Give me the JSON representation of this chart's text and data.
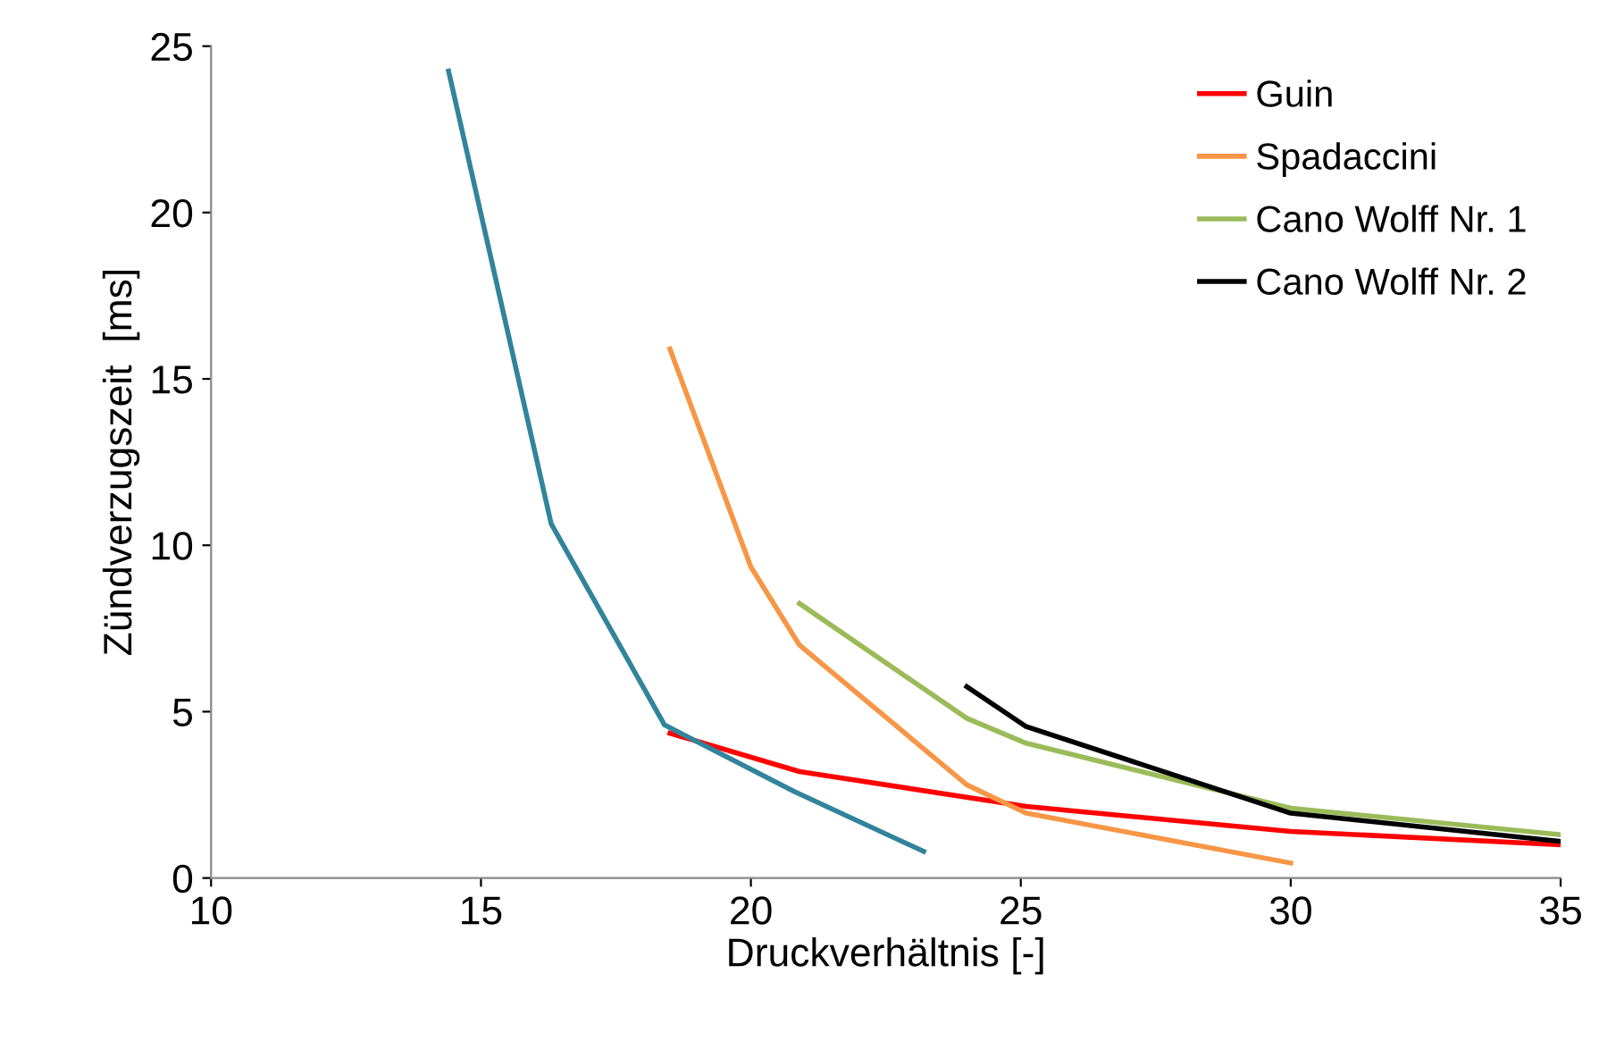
{
  "chart_data": {
    "type": "line",
    "xlabel": "Druckverhältnis [-]",
    "ylabel": "Zündverzugszeit  [ms]",
    "xlim": [
      10,
      35
    ],
    "xticks": [
      10,
      15,
      20,
      25,
      30,
      35
    ],
    "ylim": [
      0,
      25
    ],
    "yticks": [
      0,
      5,
      10,
      15,
      20,
      25
    ],
    "grid": false,
    "legend": "top right",
    "marker": "none",
    "line_style": "solid",
    "series": [
      {
        "name": "Guin",
        "color": "#ff0000",
        "x": [
          18.5,
          20.9,
          25.1,
          30.0,
          35.0
        ],
        "values": [
          4.35,
          3.2,
          2.15,
          1.4,
          1.0
        ]
      },
      {
        "name": "Spadaccini",
        "color": "#f79646",
        "x": [
          18.5,
          20.0,
          20.9,
          24.0,
          25.1,
          30.0
        ],
        "values": [
          15.9,
          9.35,
          7.0,
          2.8,
          1.95,
          0.45
        ]
      },
      {
        "name": "Cano Wolff Nr. 1",
        "color": "#9bbb59",
        "x": [
          20.9,
          24.0,
          25.1,
          30.0,
          35.0
        ],
        "values": [
          8.25,
          4.8,
          4.05,
          2.1,
          1.3
        ]
      },
      {
        "name": "Cano Wolff Nr. 2",
        "color": "#000000",
        "x": [
          24.0,
          25.1,
          30.0,
          35.0
        ],
        "values": [
          5.75,
          4.55,
          1.95,
          1.1
        ]
      },
      {
        "color": "#31849b",
        "x": [
          14.4,
          16.3,
          18.4,
          20.8,
          23.2
        ],
        "values": [
          24.25,
          10.65,
          4.6,
          2.6,
          0.8
        ]
      }
    ]
  }
}
